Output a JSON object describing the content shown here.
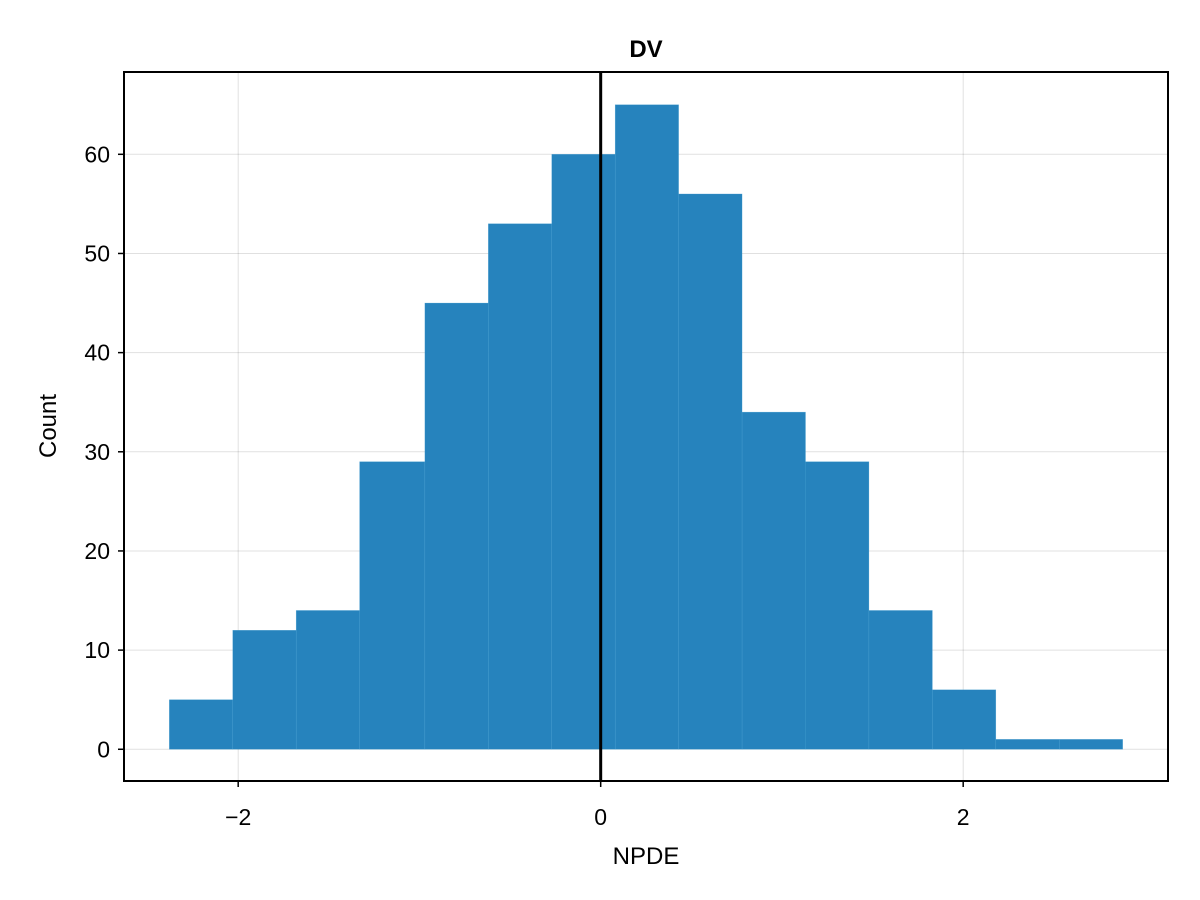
{
  "chart_data": {
    "type": "bar",
    "title": "DV",
    "xlabel": "NPDE",
    "ylabel": "Count",
    "bin_edges": [
      -2.38,
      -2.03,
      -1.68,
      -1.33,
      -0.97,
      -0.62,
      -0.27,
      0.08,
      0.43,
      0.78,
      1.13,
      1.48,
      1.83,
      2.18,
      2.53,
      2.88
    ],
    "values": [
      5,
      12,
      14,
      29,
      45,
      53,
      60,
      65,
      56,
      34,
      29,
      14,
      6,
      1,
      1
    ],
    "xlim": [
      -2.63,
      3.13
    ],
    "ylim": [
      -3.2,
      68.3
    ],
    "xticks": [
      -2,
      0,
      2
    ],
    "xtick_labels": [
      "−2",
      "0",
      "2"
    ],
    "yticks": [
      0,
      10,
      20,
      30,
      40,
      50,
      60
    ],
    "ytick_labels": [
      "0",
      "10",
      "20",
      "30",
      "40",
      "50",
      "60"
    ],
    "reference_line_x": 0,
    "grid": true,
    "colors": {
      "bar": "#2683bd",
      "reference_line": "#000000"
    }
  }
}
